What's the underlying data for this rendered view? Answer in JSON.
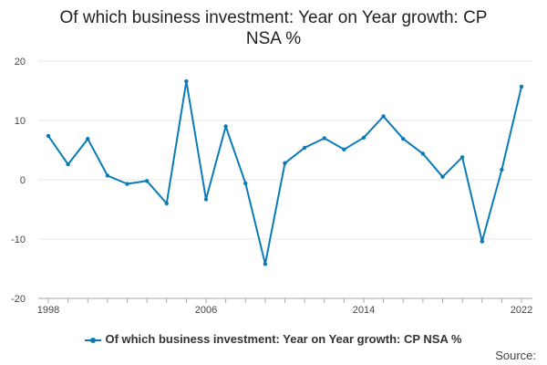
{
  "title_line1": "Of which business investment: Year on Year growth: CP",
  "title_line2": "NSA %",
  "source_label": "Source:",
  "legend_label": "Of which business investment: Year on Year growth: CP NSA %",
  "colors": {
    "series": "#0b7bb8",
    "grid": "#e6e6e6",
    "axis": "#aaaaaa"
  },
  "chart_data": {
    "type": "line",
    "title": "Of which business investment: Year on Year growth: CP NSA %",
    "xlabel": "",
    "ylabel": "",
    "ylim": [
      -20,
      20
    ],
    "xlim": [
      1998,
      2022
    ],
    "y_ticks": [
      20,
      10,
      0,
      -10,
      -20
    ],
    "x_ticks": [
      1998,
      2006,
      2014,
      2022
    ],
    "grid": true,
    "legend_position": "bottom",
    "series": [
      {
        "name": "Of which business investment: Year on Year growth: CP NSA %",
        "x": [
          1998,
          1999,
          2000,
          2001,
          2002,
          2003,
          2004,
          2005,
          2006,
          2007,
          2008,
          2009,
          2010,
          2011,
          2012,
          2013,
          2014,
          2015,
          2016,
          2017,
          2018,
          2019,
          2020,
          2021,
          2022
        ],
        "values": [
          7.4,
          2.6,
          6.9,
          0.7,
          -0.7,
          -0.2,
          -4.0,
          16.6,
          -3.3,
          9.0,
          -0.6,
          -14.2,
          2.8,
          5.4,
          7.0,
          5.1,
          7.1,
          10.7,
          6.9,
          4.4,
          0.5,
          3.8,
          -10.4,
          1.7,
          15.7
        ]
      }
    ]
  }
}
